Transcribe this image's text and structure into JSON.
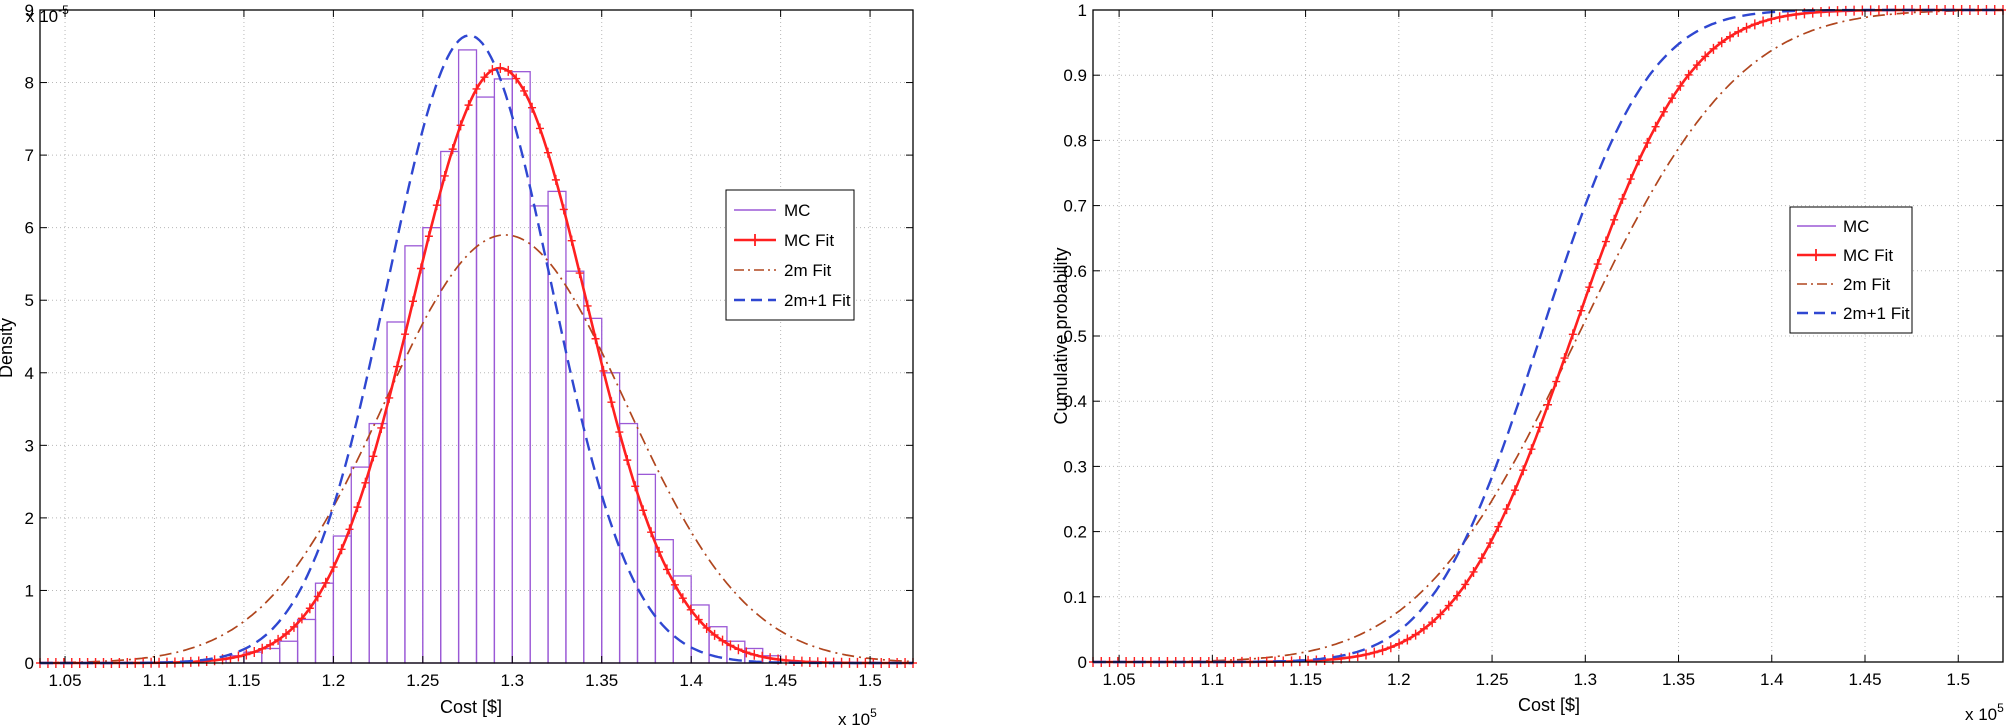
{
  "chart_data": [
    {
      "type": "histogram+line",
      "xlabel": "Cost [$]",
      "ylabel": "Density",
      "x_multiplier": "x 10",
      "x_multiplier_exp": "5",
      "y_multiplier": "x 10",
      "y_multiplier_exp": "-5",
      "xlim": [
        1.036,
        1.524
      ],
      "ylim": [
        0,
        9
      ],
      "x_ticks": [
        1.05,
        1.1,
        1.15,
        1.2,
        1.25,
        1.3,
        1.35,
        1.4,
        1.45,
        1.5
      ],
      "x_tick_labels": [
        "1.05",
        "1.1",
        "1.15",
        "1.2",
        "1.25",
        "1.3",
        "1.35",
        "1.4",
        "1.45",
        "1.5"
      ],
      "y_ticks": [
        0,
        1,
        2,
        3,
        4,
        5,
        6,
        7,
        8,
        9
      ],
      "y_tick_labels": [
        "0",
        "1",
        "2",
        "3",
        "4",
        "5",
        "6",
        "7",
        "8",
        "9"
      ],
      "grid": true,
      "legend_position": "right",
      "histogram": {
        "name": "MC",
        "color": "#9b59d6",
        "bin_edges": [
          1.14,
          1.15,
          1.16,
          1.17,
          1.18,
          1.19,
          1.2,
          1.21,
          1.22,
          1.23,
          1.24,
          1.25,
          1.26,
          1.27,
          1.28,
          1.29,
          1.3,
          1.31,
          1.32,
          1.33,
          1.34,
          1.35,
          1.36,
          1.37,
          1.38,
          1.39,
          1.4,
          1.41,
          1.42,
          1.43,
          1.44,
          1.45
        ],
        "values": [
          0.1,
          0.15,
          0.2,
          0.3,
          0.6,
          1.1,
          1.75,
          2.7,
          3.3,
          4.7,
          5.75,
          6.0,
          7.05,
          8.45,
          7.8,
          8.05,
          8.15,
          6.3,
          6.5,
          5.4,
          4.75,
          4.0,
          3.3,
          2.6,
          1.7,
          1.2,
          0.8,
          0.5,
          0.3,
          0.2,
          0.1
        ]
      },
      "series": [
        {
          "name": "MC Fit",
          "color": "#ff2020",
          "style": "solid-plus",
          "mean": 1.293,
          "std": 0.0486,
          "peak": 8.2
        },
        {
          "name": "2m Fit",
          "color": "#b0461e",
          "style": "dashdot",
          "mean": 1.296,
          "std": 0.0676,
          "peak": 5.9
        },
        {
          "name": "2m+1 Fit",
          "color": "#2f47d1",
          "style": "dashed",
          "mean": 1.276,
          "std": 0.0456,
          "peak": 8.65
        }
      ],
      "legend": [
        "MC",
        "MC Fit",
        "2m Fit",
        "2m+1 Fit"
      ]
    },
    {
      "type": "line",
      "xlabel": "Cost [$]",
      "ylabel": "Cumulative probability",
      "x_multiplier": "x 10",
      "x_multiplier_exp": "5",
      "xlim": [
        1.036,
        1.524
      ],
      "ylim": [
        0,
        1
      ],
      "x_ticks": [
        1.05,
        1.1,
        1.15,
        1.2,
        1.25,
        1.3,
        1.35,
        1.4,
        1.45,
        1.5
      ],
      "x_tick_labels": [
        "1.05",
        "1.1",
        "1.15",
        "1.2",
        "1.25",
        "1.3",
        "1.35",
        "1.4",
        "1.45",
        "1.5"
      ],
      "y_ticks": [
        0,
        0.1,
        0.2,
        0.3,
        0.4,
        0.5,
        0.6,
        0.7,
        0.8,
        0.9,
        1
      ],
      "y_tick_labels": [
        "0",
        "0.1",
        "0.2",
        "0.3",
        "0.4",
        "0.5",
        "0.6",
        "0.7",
        "0.8",
        "0.9",
        "1"
      ],
      "grid": true,
      "legend_position": "right",
      "series": [
        {
          "name": "MC",
          "color": "#9b59d6",
          "style": "solid",
          "mean": 1.293,
          "std": 0.0486
        },
        {
          "name": "MC Fit",
          "color": "#ff2020",
          "style": "solid-plus",
          "mean": 1.293,
          "std": 0.0486
        },
        {
          "name": "2m Fit",
          "color": "#b0461e",
          "style": "dashdot",
          "mean": 1.296,
          "std": 0.0676
        },
        {
          "name": "2m+1 Fit",
          "color": "#2f47d1",
          "style": "dashed",
          "mean": 1.276,
          "std": 0.0456
        }
      ],
      "legend": [
        "MC",
        "MC Fit",
        "2m Fit",
        "2m+1 Fit"
      ]
    }
  ]
}
